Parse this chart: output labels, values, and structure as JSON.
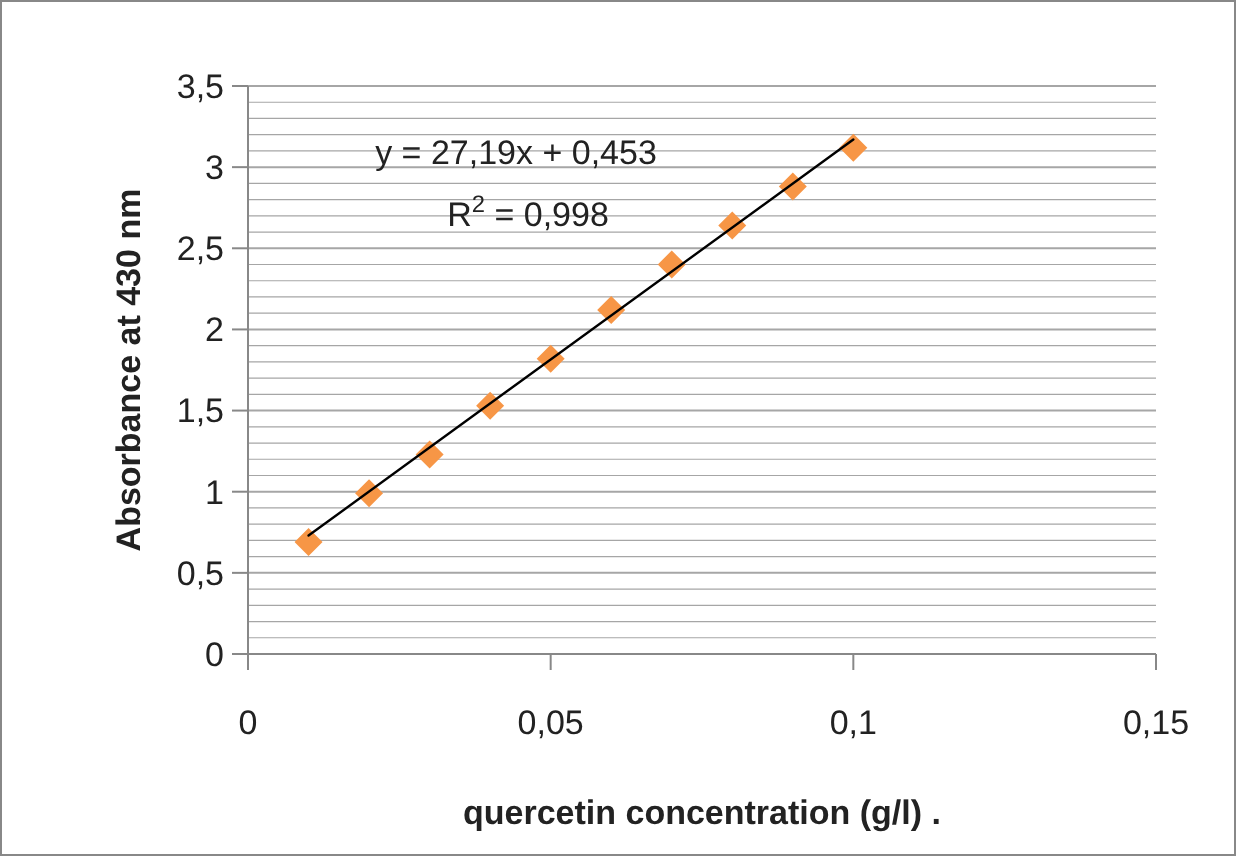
{
  "chart_data": {
    "type": "scatter",
    "xlabel": "quercetin concentration (g/l) .",
    "ylabel": "Absorbance at 430 nm",
    "x": [
      0.01,
      0.02,
      0.03,
      0.04,
      0.05,
      0.06,
      0.07,
      0.08,
      0.09,
      0.1
    ],
    "series": [
      {
        "color": "#f79646",
        "values": [
          0.69,
          0.99,
          1.23,
          1.53,
          1.82,
          2.12,
          2.4,
          2.64,
          2.88,
          3.12
        ],
        "marker": "diamond"
      },
      {
        "type": "line",
        "color": "#000000",
        "x": [
          0.01,
          0.1
        ],
        "values": [
          0.73,
          3.17
        ],
        "marker": "none",
        "line_style": "solid"
      }
    ],
    "xlim": [
      0,
      0.15
    ],
    "xticks": [
      {
        "value": 0,
        "label": "0"
      },
      {
        "value": 0.05,
        "label": "0,05"
      },
      {
        "value": 0.1,
        "label": "0,1"
      },
      {
        "value": 0.15,
        "label": "0,15"
      }
    ],
    "ylim": [
      0,
      3.5
    ],
    "yticks": [
      {
        "value": 0,
        "label": "0"
      },
      {
        "value": 0.1,
        "label": null
      },
      {
        "value": 0.2,
        "label": null
      },
      {
        "value": 0.3,
        "label": null
      },
      {
        "value": 0.4,
        "label": null
      },
      {
        "value": 0.5,
        "label": "0,5"
      },
      {
        "value": 0.6,
        "label": null
      },
      {
        "value": 0.7,
        "label": null
      },
      {
        "value": 0.8,
        "label": null
      },
      {
        "value": 0.9,
        "label": null
      },
      {
        "value": 1,
        "label": "1"
      },
      {
        "value": 1.1,
        "label": null
      },
      {
        "value": 1.2,
        "label": null
      },
      {
        "value": 1.3,
        "label": null
      },
      {
        "value": 1.4,
        "label": null
      },
      {
        "value": 1.5,
        "label": "1,5"
      },
      {
        "value": 1.6,
        "label": null
      },
      {
        "value": 1.7,
        "label": null
      },
      {
        "value": 1.8,
        "label": null
      },
      {
        "value": 1.9,
        "label": null
      },
      {
        "value": 2,
        "label": "2"
      },
      {
        "value": 2.1,
        "label": null
      },
      {
        "value": 2.2,
        "label": null
      },
      {
        "value": 2.3,
        "label": null
      },
      {
        "value": 2.4,
        "label": null
      },
      {
        "value": 2.5,
        "label": "2,5"
      },
      {
        "value": 2.6,
        "label": null
      },
      {
        "value": 2.7,
        "label": null
      },
      {
        "value": 2.8,
        "label": null
      },
      {
        "value": 2.9,
        "label": null
      },
      {
        "value": 3,
        "label": "3"
      },
      {
        "value": 3.1,
        "label": null
      },
      {
        "value": 3.2,
        "label": null
      },
      {
        "value": 3.3,
        "label": null
      },
      {
        "value": 3.4,
        "label": null
      },
      {
        "value": 3.5,
        "label": "3,5"
      }
    ],
    "grid": "y",
    "annotations": [
      "y = 27,19x + 0,453",
      "R$^{2}$ = 0,998"
    ]
  }
}
